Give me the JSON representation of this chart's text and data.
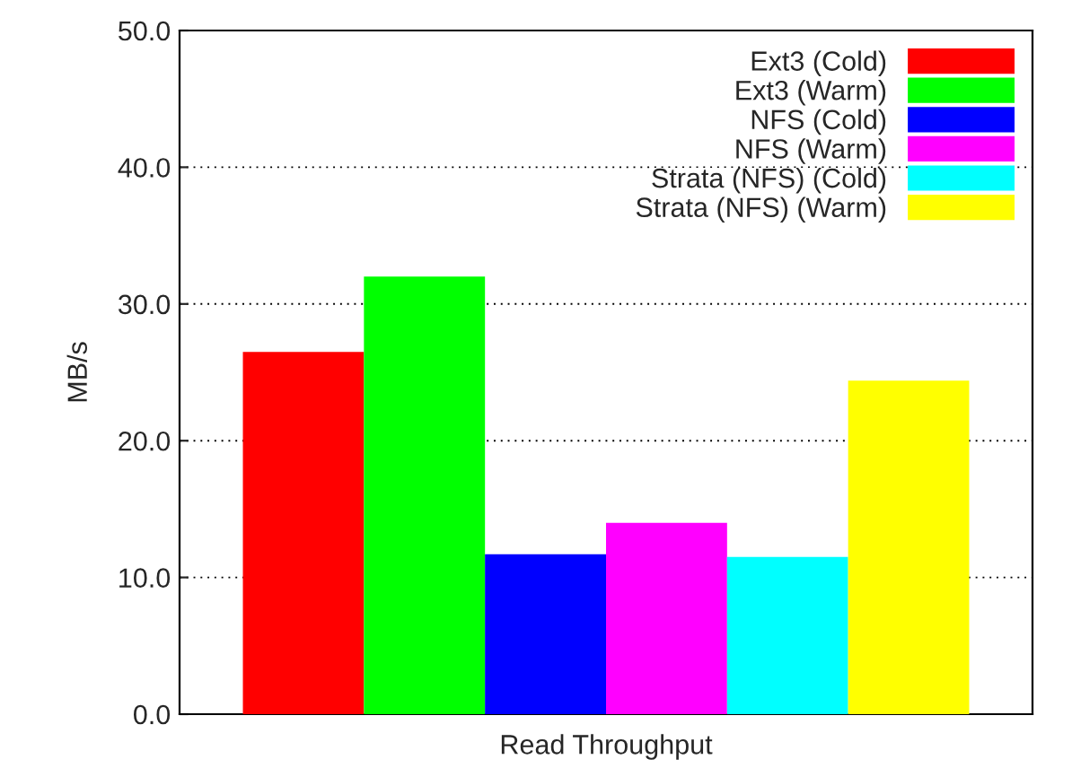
{
  "chart_data": {
    "type": "bar",
    "ylabel": "MB/s",
    "categories": [
      "Read Throughput"
    ],
    "series": [
      {
        "name": "Ext3 (Cold)",
        "color": "#ff0000",
        "values": [
          26.5
        ]
      },
      {
        "name": "Ext3 (Warm)",
        "color": "#00ff00",
        "values": [
          32.0
        ]
      },
      {
        "name": "NFS (Cold)",
        "color": "#0000ff",
        "values": [
          11.7
        ]
      },
      {
        "name": "NFS (Warm)",
        "color": "#ff00ff",
        "values": [
          14.0
        ]
      },
      {
        "name": "Strata (NFS) (Cold)",
        "color": "#00ffff",
        "values": [
          11.5
        ]
      },
      {
        "name": "Strata (NFS) (Warm)",
        "color": "#ffff00",
        "values": [
          24.4
        ]
      }
    ],
    "ylim": [
      0,
      50
    ],
    "yticks": [
      {
        "value": 0,
        "label": "0.0"
      },
      {
        "value": 10,
        "label": "10.0"
      },
      {
        "value": 20,
        "label": "20.0"
      },
      {
        "value": 30,
        "label": "30.0"
      },
      {
        "value": 40,
        "label": "40.0"
      },
      {
        "value": 50,
        "label": "50.0"
      }
    ],
    "grid": "y",
    "legend": "top right"
  }
}
